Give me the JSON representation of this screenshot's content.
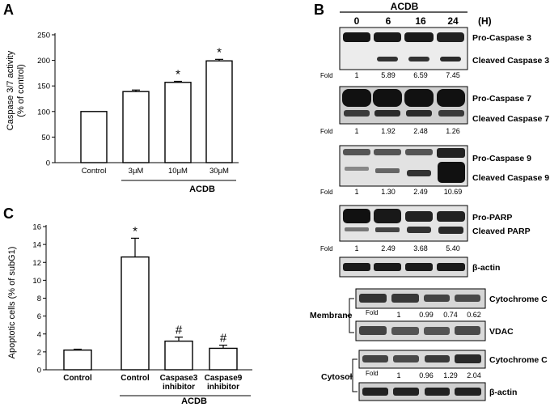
{
  "panels": {
    "a": {
      "letter": "A"
    },
    "b": {
      "letter": "B"
    },
    "c": {
      "letter": "C"
    }
  },
  "chart_data": [
    {
      "type": "bar",
      "panel": "A",
      "title": "",
      "ylabel_line1": "Caspase 3/7 activity",
      "ylabel_line2": "(% of control)",
      "ylim": [
        0,
        250
      ],
      "yticks": [
        0,
        50,
        100,
        150,
        200,
        250
      ],
      "categories": [
        "Control",
        "3μM",
        "10μM",
        "30μM"
      ],
      "values": [
        100,
        139,
        157,
        199
      ],
      "errors": [
        0,
        3,
        2,
        3
      ],
      "significance": [
        "",
        "",
        "*",
        "*"
      ],
      "group_label": "ACDB",
      "bar_fill": "#ffffff",
      "bar_stroke": "#000000"
    },
    {
      "type": "bar",
      "panel": "C",
      "title": "",
      "ylabel": "Apoptotic cells  (% of subG1)",
      "ylim": [
        0,
        16
      ],
      "yticks": [
        0,
        2,
        4,
        6,
        8,
        10,
        12,
        14,
        16
      ],
      "categories": [
        "Control",
        "Control",
        "Caspase3 inhibitor",
        "Caspase9 inhibitor"
      ],
      "category_lines": [
        [
          "Control"
        ],
        [
          "Control"
        ],
        [
          "Caspase3",
          "inhibitor"
        ],
        [
          "Caspase9",
          "inhibitor"
        ]
      ],
      "values": [
        2.2,
        12.6,
        3.2,
        2.4
      ],
      "errors": [
        0.1,
        2.1,
        0.45,
        0.35
      ],
      "significance": [
        "",
        "*",
        "#",
        "#"
      ],
      "group_label": "ACDB",
      "bar_fill": "#ffffff",
      "bar_stroke": "#000000"
    }
  ],
  "blot": {
    "header": "ACDB",
    "timepoints": [
      "0",
      "6",
      "16",
      "24"
    ],
    "unit": "(H)",
    "fold_label": "Fold",
    "blots": [
      {
        "labels": [
          "Pro-Caspase 3",
          "Cleaved Caspase 3"
        ],
        "folds": [
          "1",
          "5.89",
          "6.59",
          "7.45"
        ]
      },
      {
        "labels": [
          "Pro-Caspase 7",
          "Cleaved Caspase 7"
        ],
        "folds": [
          "1",
          "1.92",
          "2.48",
          "1.26"
        ]
      },
      {
        "labels": [
          "Pro-Caspase 9",
          "Cleaved Caspase 9"
        ],
        "folds": [
          "1",
          "1.30",
          "2.49",
          "10.69"
        ]
      },
      {
        "labels": [
          "Pro-PARP",
          "Cleaved PARP"
        ],
        "folds": [
          "1",
          "2.49",
          "3.68",
          "5.40"
        ]
      },
      {
        "labels": [
          "β-actin"
        ],
        "folds": []
      }
    ],
    "membrane": {
      "label": "Membrane",
      "cyto_label": "Cytochrome C",
      "folds": [
        "1",
        "0.99",
        "0.74",
        "0.62"
      ],
      "loading_label": "VDAC"
    },
    "cytosol": {
      "label": "Cytosol",
      "cyto_label": "Cytochrome C",
      "folds": [
        "1",
        "0.96",
        "1.29",
        "2.04"
      ],
      "loading_label": "β-actin"
    }
  }
}
